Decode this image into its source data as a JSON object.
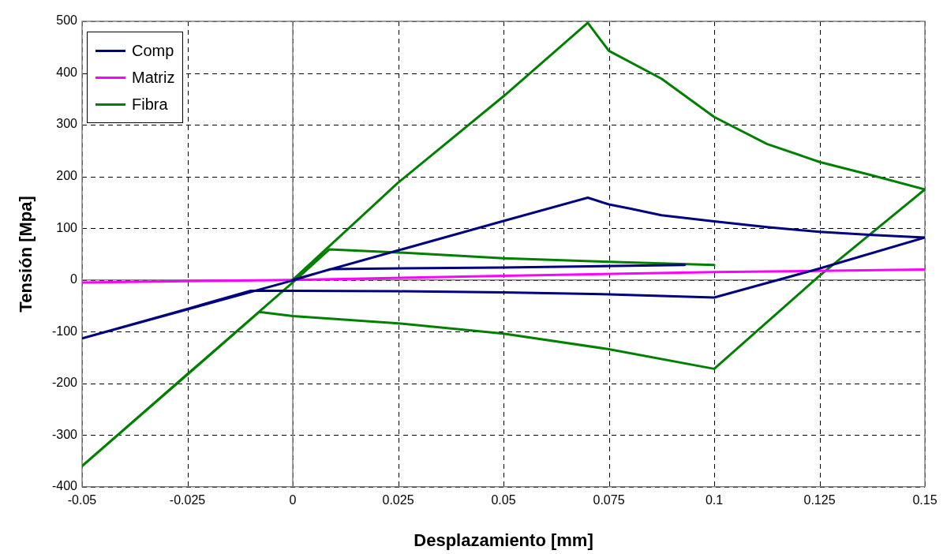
{
  "chart_data": {
    "type": "line",
    "xlabel": "Desplazamiento [mm]",
    "ylabel": "Tensión [Mpa]",
    "xlim": [
      -0.05,
      0.15
    ],
    "xticks": [
      -0.05,
      -0.025,
      0,
      0.025,
      0.05,
      0.075,
      0.1,
      0.125,
      0.15
    ],
    "ylim": [
      -400,
      500
    ],
    "yticks": [
      -400,
      -300,
      -200,
      -100,
      0,
      100,
      200,
      300,
      400,
      500
    ],
    "grid": true,
    "legend": "top left",
    "marker": "none",
    "line_style": "solid",
    "series": [
      {
        "name": "Comp",
        "color": "#000080",
        "x": [
          0,
          0.025,
          0.05,
          0.07,
          0.075,
          0.08,
          0.0875,
          0.1,
          0.1125,
          0.125,
          0.1375,
          0.15,
          0.125,
          0.1,
          0.075,
          0.05,
          0.025,
          0,
          -0.01,
          -0.025,
          -0.05,
          -0.025,
          0,
          0.009,
          0.05,
          0.093
        ],
        "values": [
          0,
          57,
          114,
          159,
          146,
          138,
          125,
          113,
          102,
          93,
          87,
          82,
          22,
          -34,
          -28,
          -24,
          -22,
          -21,
          -21,
          -56,
          -113,
          -57,
          -1,
          21,
          24,
          29
        ]
      },
      {
        "name": "Matriz",
        "color": "#ff00ff",
        "x": [
          -0.05,
          0,
          0.05,
          0.1,
          0.15
        ],
        "values": [
          -5,
          0,
          8,
          15,
          20
        ]
      },
      {
        "name": "Fibra",
        "color": "#008000",
        "x": [
          0,
          0.025,
          0.05,
          0.07,
          0.075,
          0.0875,
          0.1,
          0.1125,
          0.125,
          0.1375,
          0.15,
          0.125,
          0.1,
          0.075,
          0.05,
          0.025,
          0,
          -0.008,
          -0.025,
          -0.05,
          -0.025,
          0,
          0.0087,
          0.025,
          0.05,
          0.075,
          0.1
        ],
        "values": [
          0,
          188,
          355,
          497,
          443,
          389,
          315,
          263,
          228,
          202,
          175,
          8,
          -172,
          -134,
          -104,
          -84,
          -70,
          -62,
          -183,
          -360,
          -182,
          -5,
          59,
          53,
          42,
          35,
          29
        ]
      }
    ]
  }
}
